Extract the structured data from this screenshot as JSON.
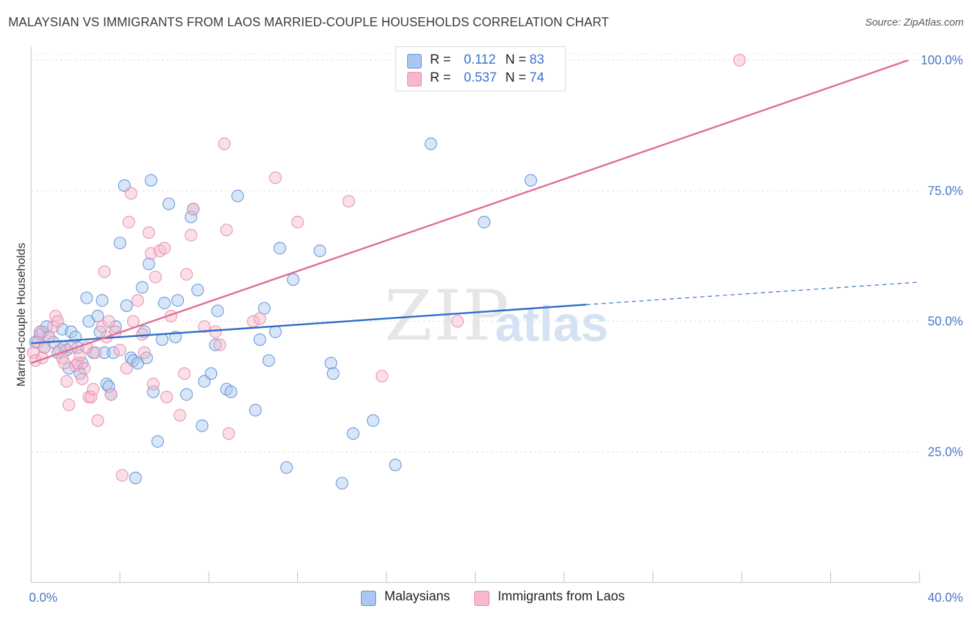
{
  "header": {
    "title": "MALAYSIAN VS IMMIGRANTS FROM LAOS MARRIED-COUPLE HOUSEHOLDS CORRELATION CHART",
    "source": "Source: ZipAtlas.com"
  },
  "watermark": {
    "zip": "ZIP",
    "atlas": "atlas"
  },
  "legend": {
    "rows": [
      {
        "r_label": "R =",
        "r_value": "0.112",
        "n_label": "N =",
        "n_value": "83",
        "color": "#a9c7f0"
      },
      {
        "r_label": "R =",
        "r_value": "0.537",
        "n_label": "N =",
        "n_value": "74",
        "color": "#f7b8cc"
      }
    ]
  },
  "bottom_legend": {
    "items": [
      {
        "label": "Malaysians",
        "color": "#a9c7f0"
      },
      {
        "label": "Immigrants from Laos",
        "color": "#f7b8cc"
      }
    ]
  },
  "chart_data": {
    "type": "scatter",
    "title": "MALAYSIAN VS IMMIGRANTS FROM LAOS MARRIED-COUPLE HOUSEHOLDS CORRELATION CHART",
    "xlabel": "",
    "ylabel": "Married-couple Households",
    "xlim": [
      0,
      40
    ],
    "ylim": [
      0,
      102
    ],
    "x_tick_labels": [
      {
        "value": 0,
        "label": "0.0%"
      },
      {
        "value": 40,
        "label": "40.0%"
      }
    ],
    "y_tick_labels": [
      {
        "value": 25,
        "label": "25.0%"
      },
      {
        "value": 50,
        "label": "50.0%"
      },
      {
        "value": 75,
        "label": "75.0%"
      },
      {
        "value": 100,
        "label": "100.0%"
      }
    ],
    "grid": true,
    "colors": {
      "blue_fill": "#a9c7f0",
      "blue_stroke": "#5b8fd6",
      "blue_line": "#2f6cc7",
      "pink_fill": "#f7b8cc",
      "pink_stroke": "#e58aa8",
      "pink_line": "#e06d95"
    },
    "series": [
      {
        "name": "Malaysians",
        "trend": {
          "x": [
            0,
            25
          ],
          "y": [
            45.8,
            53.2
          ],
          "dashed_to_x": 40,
          "dashed_to_y": 57.5
        },
        "points": [
          [
            0.2,
            46
          ],
          [
            0.4,
            47.5
          ],
          [
            0.5,
            48
          ],
          [
            0.6,
            45
          ],
          [
            0.7,
            49
          ],
          [
            0.8,
            47
          ],
          [
            1.0,
            46
          ],
          [
            1.2,
            44
          ],
          [
            1.4,
            48.5
          ],
          [
            1.5,
            45
          ],
          [
            1.6,
            44.5
          ],
          [
            1.7,
            41
          ],
          [
            1.8,
            48
          ],
          [
            2.0,
            47
          ],
          [
            2.1,
            45
          ],
          [
            2.2,
            40
          ],
          [
            2.3,
            42
          ],
          [
            2.5,
            54.5
          ],
          [
            2.6,
            50
          ],
          [
            2.8,
            44
          ],
          [
            3.0,
            51
          ],
          [
            3.1,
            48
          ],
          [
            3.2,
            54
          ],
          [
            3.3,
            44
          ],
          [
            3.4,
            38
          ],
          [
            3.5,
            37.5
          ],
          [
            3.6,
            36
          ],
          [
            3.7,
            44
          ],
          [
            3.8,
            49
          ],
          [
            4.0,
            65
          ],
          [
            4.2,
            76
          ],
          [
            4.3,
            53
          ],
          [
            4.5,
            43
          ],
          [
            4.6,
            42.5
          ],
          [
            4.7,
            20
          ],
          [
            4.8,
            42
          ],
          [
            5.0,
            56.5
          ],
          [
            5.1,
            48
          ],
          [
            5.2,
            43
          ],
          [
            5.3,
            61
          ],
          [
            5.4,
            77
          ],
          [
            5.5,
            36.5
          ],
          [
            5.7,
            27
          ],
          [
            5.9,
            46.5
          ],
          [
            6.0,
            53.5
          ],
          [
            6.2,
            72.5
          ],
          [
            6.5,
            47
          ],
          [
            6.6,
            54
          ],
          [
            7.0,
            36
          ],
          [
            7.2,
            70
          ],
          [
            7.3,
            71.5
          ],
          [
            7.5,
            56
          ],
          [
            7.7,
            30
          ],
          [
            7.8,
            38.5
          ],
          [
            8.1,
            40
          ],
          [
            8.3,
            45.5
          ],
          [
            8.4,
            52
          ],
          [
            8.8,
            37
          ],
          [
            9.0,
            36.5
          ],
          [
            9.3,
            74
          ],
          [
            10.1,
            33
          ],
          [
            10.3,
            46.5
          ],
          [
            10.5,
            52.5
          ],
          [
            10.7,
            42.5
          ],
          [
            11.0,
            48
          ],
          [
            11.2,
            64
          ],
          [
            11.5,
            22
          ],
          [
            11.8,
            58
          ],
          [
            13.0,
            63.5
          ],
          [
            13.5,
            42
          ],
          [
            13.6,
            40
          ],
          [
            14.0,
            19
          ],
          [
            14.5,
            28.5
          ],
          [
            15.4,
            31
          ],
          [
            16.4,
            22.5
          ],
          [
            18.0,
            84
          ],
          [
            20.4,
            69
          ],
          [
            22.5,
            77
          ]
        ]
      },
      {
        "name": "Immigrants from Laos",
        "trend": {
          "x": [
            0,
            39.5
          ],
          "y": [
            42,
            100
          ]
        },
        "points": [
          [
            0.1,
            44
          ],
          [
            0.2,
            42.5
          ],
          [
            0.3,
            46
          ],
          [
            0.4,
            48
          ],
          [
            0.5,
            43
          ],
          [
            0.6,
            45
          ],
          [
            0.8,
            47
          ],
          [
            1.0,
            49
          ],
          [
            1.1,
            51
          ],
          [
            1.2,
            50
          ],
          [
            1.3,
            44.5
          ],
          [
            1.4,
            43
          ],
          [
            1.5,
            42
          ],
          [
            1.6,
            38.5
          ],
          [
            1.7,
            34
          ],
          [
            1.8,
            45
          ],
          [
            2.0,
            41.5
          ],
          [
            2.1,
            42
          ],
          [
            2.2,
            43.5
          ],
          [
            2.3,
            39
          ],
          [
            2.4,
            41
          ],
          [
            2.5,
            45
          ],
          [
            2.6,
            35.5
          ],
          [
            2.7,
            35.5
          ],
          [
            2.8,
            37
          ],
          [
            2.9,
            44
          ],
          [
            3.0,
            31
          ],
          [
            3.2,
            49
          ],
          [
            3.3,
            59.5
          ],
          [
            3.4,
            47
          ],
          [
            3.5,
            50
          ],
          [
            3.6,
            36
          ],
          [
            3.8,
            48
          ],
          [
            4.0,
            44.5
          ],
          [
            4.1,
            20.5
          ],
          [
            4.3,
            41
          ],
          [
            4.4,
            69
          ],
          [
            4.5,
            74.5
          ],
          [
            4.6,
            50
          ],
          [
            4.8,
            54
          ],
          [
            5.0,
            47.5
          ],
          [
            5.1,
            44
          ],
          [
            5.3,
            67
          ],
          [
            5.4,
            63
          ],
          [
            5.5,
            38
          ],
          [
            5.6,
            58.5
          ],
          [
            5.8,
            63.5
          ],
          [
            6.0,
            64
          ],
          [
            6.1,
            35.5
          ],
          [
            6.3,
            51
          ],
          [
            6.7,
            32
          ],
          [
            6.9,
            40
          ],
          [
            7.0,
            59
          ],
          [
            7.2,
            66.5
          ],
          [
            7.3,
            71.5
          ],
          [
            7.8,
            49
          ],
          [
            8.3,
            48
          ],
          [
            8.5,
            45.5
          ],
          [
            8.7,
            84
          ],
          [
            8.8,
            67.5
          ],
          [
            8.9,
            28.5
          ],
          [
            10.0,
            50
          ],
          [
            10.3,
            50.5
          ],
          [
            11.0,
            77.5
          ],
          [
            12.0,
            69
          ],
          [
            14.3,
            73
          ],
          [
            15.8,
            39.5
          ],
          [
            19.2,
            50
          ],
          [
            31.9,
            100
          ]
        ]
      }
    ]
  }
}
